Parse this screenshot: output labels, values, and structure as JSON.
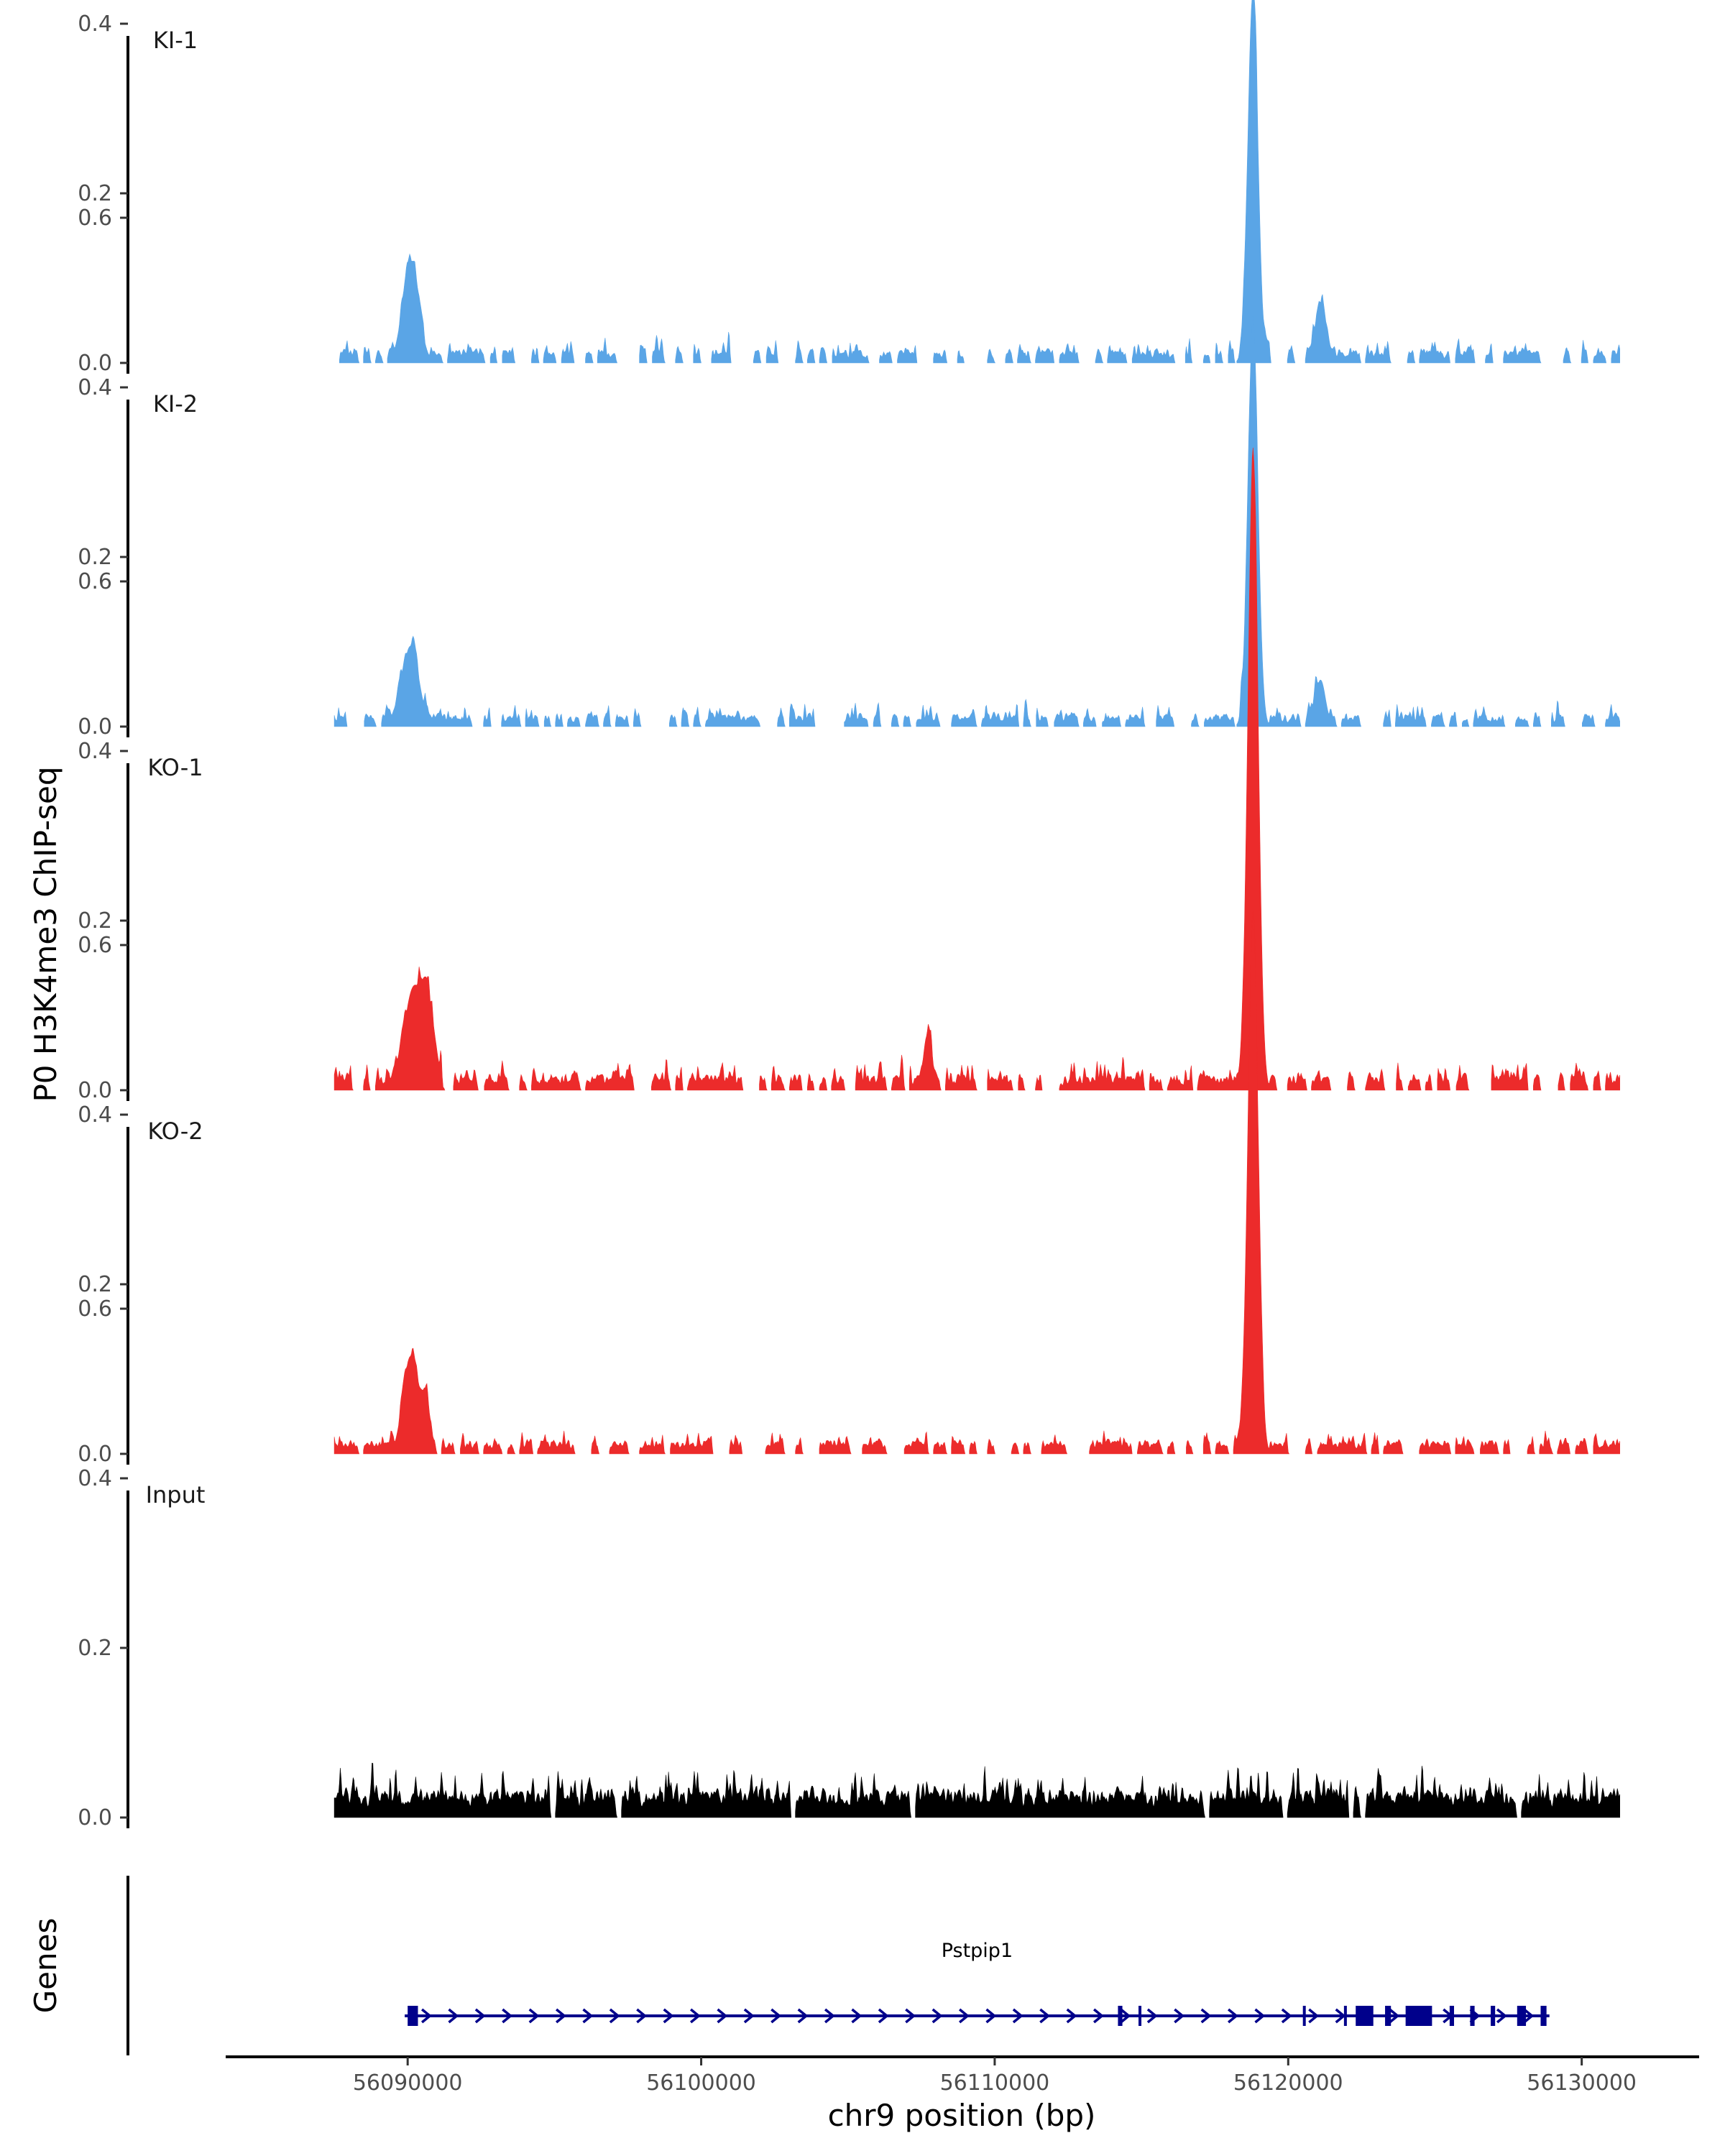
{
  "chart_data": {
    "type": "area",
    "title": "",
    "ylabel": "P0 H3K4me3 ChIP-seq",
    "xlabel": "chr9 position (bp)",
    "region": {
      "chrom": "chr9",
      "start": 56087500,
      "end": 56131300
    },
    "xlim": [
      56083800,
      56134000
    ],
    "x_ticks": [
      56090000,
      56100000,
      56110000,
      56120000,
      56130000
    ],
    "x_tick_labels": [
      "56090000",
      "56100000",
      "56110000",
      "56120000",
      "56130000"
    ],
    "ylim": [
      0,
      0.78
    ],
    "y_ticks": [
      0.0,
      0.2,
      0.4,
      0.6
    ],
    "y_tick_labels": [
      "0.0",
      "0.2",
      "0.4",
      "0.6"
    ],
    "tracks": [
      {
        "label": "KI-1",
        "color": "#5AA5E6",
        "peaks": [
          [
            56118800,
            0.43,
            170
          ],
          [
            56090100,
            0.11,
            280
          ],
          [
            56121100,
            0.06,
            170
          ]
        ],
        "background": {
          "level": 0.012,
          "variation": 0.022,
          "coverage": 0.62
        }
      },
      {
        "label": "KI-2",
        "color": "#5AA5E6",
        "peaks": [
          [
            56118800,
            0.47,
            170
          ],
          [
            56090100,
            0.095,
            280
          ],
          [
            56121100,
            0.055,
            170
          ]
        ],
        "background": {
          "level": 0.01,
          "variation": 0.02,
          "coverage": 0.6
        }
      },
      {
        "label": "KO-1",
        "color": "#EC2B2B",
        "peaks": [
          [
            56118800,
            0.74,
            175
          ],
          [
            56090200,
            0.12,
            320
          ],
          [
            56090700,
            0.07,
            200
          ],
          [
            56107700,
            0.065,
            130
          ]
        ],
        "background": {
          "level": 0.013,
          "variation": 0.025,
          "coverage": 0.63
        }
      },
      {
        "label": "KO-2",
        "color": "#EC2B2B",
        "peaks": [
          [
            56118800,
            0.63,
            175
          ],
          [
            56090100,
            0.115,
            260
          ],
          [
            56090600,
            0.05,
            150
          ]
        ],
        "background": {
          "level": 0.012,
          "variation": 0.02,
          "coverage": 0.66
        }
      },
      {
        "label": "Input",
        "color": "#000000",
        "peaks": [],
        "background": {
          "level": 0.028,
          "variation": 0.04,
          "coverage": 0.96
        }
      }
    ],
    "gene_track": {
      "label": "Genes",
      "color": "#00008B",
      "gene": {
        "name": "Pstpip1",
        "start": 56089900,
        "end": 56128900,
        "strand": "+",
        "exons": [
          [
            56090000,
            56090350
          ],
          [
            56114200,
            56114350
          ],
          [
            56114900,
            56114980
          ],
          [
            56120500,
            56120580
          ],
          [
            56121900,
            56121980
          ],
          [
            56122300,
            56122900
          ],
          [
            56123300,
            56123500
          ],
          [
            56124000,
            56124900
          ],
          [
            56125500,
            56125650
          ],
          [
            56126200,
            56126350
          ],
          [
            56126900,
            56127050
          ],
          [
            56127800,
            56128100
          ],
          [
            56128600,
            56128800
          ]
        ]
      }
    }
  }
}
